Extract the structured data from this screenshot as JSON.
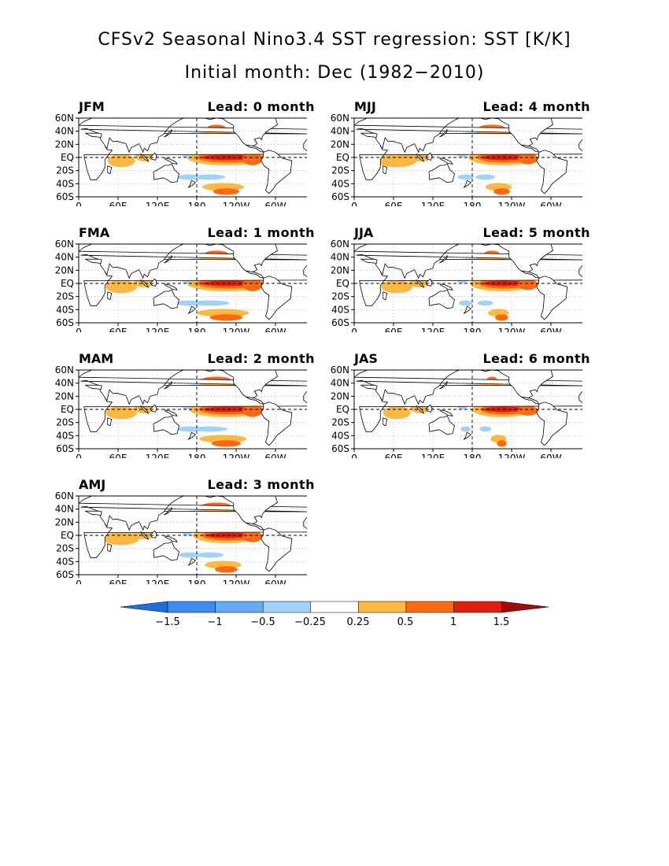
{
  "title": {
    "line1": "CFSv2 Seasonal Nino3.4 SST regression: SST [K/K]",
    "line2": "Initial month: Dec (1982−2010)"
  },
  "axes": {
    "lat_labels": [
      "60N",
      "40N",
      "20N",
      "EQ",
      "20S",
      "40S",
      "60S"
    ],
    "lon_labels": [
      "0",
      "60E",
      "120E",
      "180",
      "120W",
      "60W",
      "0"
    ]
  },
  "panels": [
    {
      "season": "JFM",
      "lead": "Lead: 0 month",
      "strength": 1.0,
      "north": 0.7,
      "south": 0.8,
      "io": 0.7
    },
    {
      "season": "FMA",
      "lead": "Lead: 1 month",
      "strength": 1.0,
      "north": 0.9,
      "south": 1.0,
      "io": 0.8
    },
    {
      "season": "MAM",
      "lead": "Lead: 2 month",
      "strength": 0.95,
      "north": 1.1,
      "south": 0.9,
      "io": 0.8
    },
    {
      "season": "AMJ",
      "lead": "Lead: 3 month",
      "strength": 0.85,
      "north": 1.1,
      "south": 0.7,
      "io": 0.9
    },
    {
      "season": "MJJ",
      "lead": "Lead: 4 month",
      "strength": 0.85,
      "north": 1.0,
      "south": 0.5,
      "io": 1.0
    },
    {
      "season": "JJA",
      "lead": "Lead: 5 month",
      "strength": 0.8,
      "north": 0.6,
      "south": 0.4,
      "io": 0.8
    },
    {
      "season": "JAS",
      "lead": "Lead: 6 month",
      "strength": 0.75,
      "north": 0.4,
      "south": 0.3,
      "io": 0.7
    }
  ],
  "colorbar": {
    "labels": [
      "−1.5",
      "−1",
      "−0.5",
      "−0.25",
      "0.25",
      "0.5",
      "1",
      "1.5"
    ],
    "colors": [
      "#1e6ee0",
      "#3c8cf0",
      "#64aaf5",
      "#a0d2fa",
      "#ffffff",
      "#ffb940",
      "#ff6a10",
      "#e01e10",
      "#a00a0a"
    ]
  }
}
